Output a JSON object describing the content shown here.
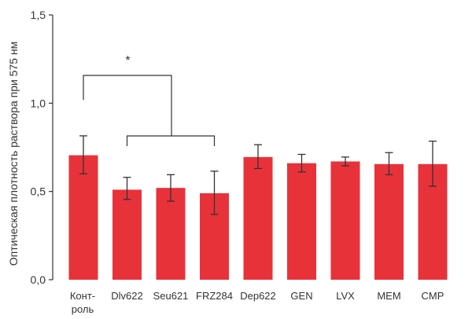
{
  "chart_data": {
    "type": "bar",
    "ylabel": "Оптическая плотность раствора при 575 нм",
    "ylim": [
      0,
      1.5
    ],
    "yticks": [
      0,
      0.5,
      1.0,
      1.5
    ],
    "ytick_labels": [
      "0,0",
      "0,5",
      "1,0",
      "1,5"
    ],
    "categories": [
      [
        "Конт-",
        "роль"
      ],
      [
        "Dlv622"
      ],
      [
        "Seu621"
      ],
      [
        "FRZ284"
      ],
      [
        "Dep622"
      ],
      [
        "GEN"
      ],
      [
        "LVX"
      ],
      [
        "MEM"
      ],
      [
        "CMP"
      ]
    ],
    "values": [
      0.705,
      0.51,
      0.52,
      0.49,
      0.695,
      0.66,
      0.67,
      0.655,
      0.655
    ],
    "error_low": [
      0.6,
      0.455,
      0.445,
      0.37,
      0.63,
      0.61,
      0.645,
      0.595,
      0.53
    ],
    "error_high": [
      0.815,
      0.58,
      0.595,
      0.615,
      0.765,
      0.71,
      0.695,
      0.72,
      0.785
    ],
    "significance": {
      "label": "*",
      "control_index": 0,
      "group_from": 1,
      "group_to": 3
    },
    "grid": false,
    "bar_color": "#e8323a"
  }
}
